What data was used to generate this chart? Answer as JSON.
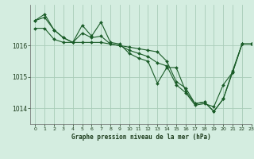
{
  "title": "Graphe pression niveau de la mer (hPa)",
  "bg_color": "#d4ede0",
  "grid_color": "#a8ccb8",
  "line_color": "#1a5c28",
  "xlim": [
    -0.5,
    23
  ],
  "ylim": [
    1013.5,
    1017.3
  ],
  "yticks": [
    1014,
    1015,
    1016
  ],
  "xticks": [
    0,
    1,
    2,
    3,
    4,
    5,
    6,
    7,
    8,
    9,
    10,
    11,
    12,
    13,
    14,
    15,
    16,
    17,
    18,
    19,
    20,
    21,
    22,
    23
  ],
  "series": [
    [
      1016.8,
      1017.0,
      1016.5,
      1016.25,
      1016.1,
      1016.65,
      1016.3,
      1016.75,
      1016.1,
      1016.05,
      1015.75,
      1015.6,
      1015.5,
      1014.8,
      1015.3,
      1015.3,
      1014.55,
      1014.15,
      1014.2,
      1013.9,
      1014.3,
      1015.2,
      1016.05,
      1016.05
    ],
    [
      1016.8,
      1016.9,
      1016.5,
      1016.25,
      1016.1,
      1016.4,
      1016.25,
      1016.3,
      1016.05,
      1016.0,
      1015.85,
      1015.75,
      1015.65,
      1015.45,
      1015.35,
      1014.75,
      1014.5,
      1014.1,
      1014.15,
      1014.05,
      1014.75,
      1015.15,
      1016.05,
      1016.05
    ],
    [
      1016.55,
      1016.55,
      1016.2,
      1016.1,
      1016.1,
      1016.1,
      1016.1,
      1016.1,
      1016.05,
      1016.0,
      1015.95,
      1015.9,
      1015.85,
      1015.8,
      1015.5,
      1014.85,
      1014.65,
      1014.15,
      1014.2,
      1013.9,
      1014.3,
      1015.15,
      1016.05,
      1016.05
    ]
  ]
}
